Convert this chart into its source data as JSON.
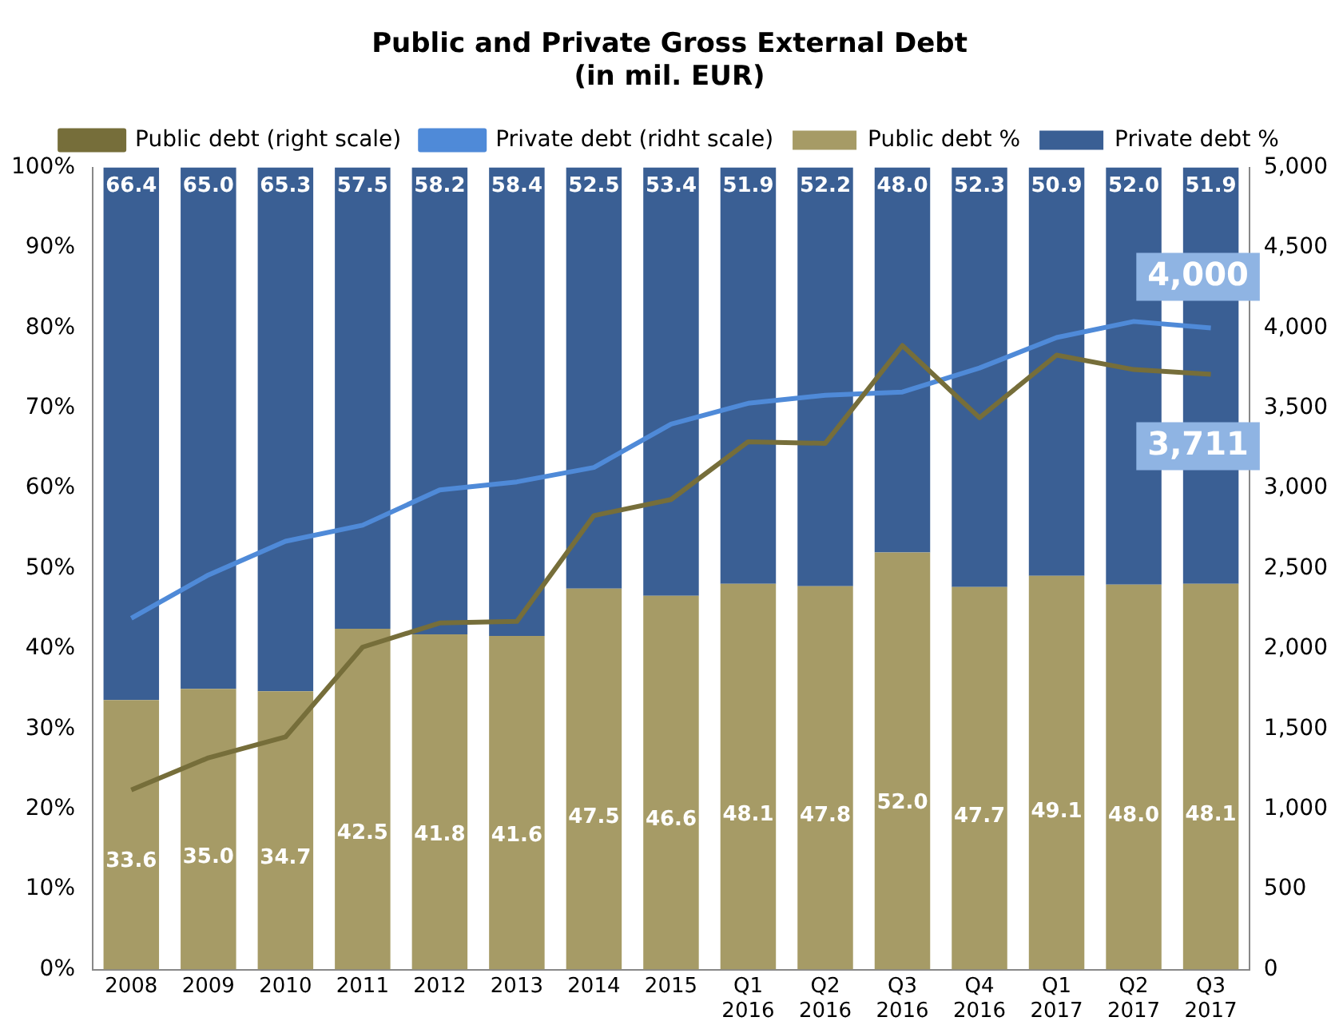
{
  "chart_data": {
    "type": "bar",
    "title": "Public and Private Gross External Debt",
    "subtitle": "(in mil. EUR)",
    "categories": [
      "2008",
      "2009",
      "2010",
      "2011",
      "2012",
      "2013",
      "2014",
      "2015",
      "Q1 2016",
      "Q2 2016",
      "Q3 2016",
      "Q4 2016",
      "Q1 2017",
      "Q2 2017",
      "Q3 2017"
    ],
    "stacked": true,
    "legend": "top",
    "grid": false,
    "ylim": [
      0,
      100
    ],
    "yticks": [
      {
        "value": 0,
        "label": "0%"
      },
      {
        "value": 10,
        "label": "10%"
      },
      {
        "value": 20,
        "label": "20%"
      },
      {
        "value": 30,
        "label": "30%"
      },
      {
        "value": 40,
        "label": "40%"
      },
      {
        "value": 50,
        "label": "50%"
      },
      {
        "value": 60,
        "label": "60%"
      },
      {
        "value": 70,
        "label": "70%"
      },
      {
        "value": 80,
        "label": "80%"
      },
      {
        "value": 90,
        "label": "90%"
      },
      {
        "value": 100,
        "label": "100%"
      }
    ],
    "y2lim": [
      0,
      5000
    ],
    "y2ticks": [
      0,
      500,
      {
        "value": 1000,
        "label": "1,000"
      },
      {
        "value": 1500,
        "label": "1,500"
      },
      {
        "value": 2000,
        "label": "2,000"
      },
      {
        "value": 2500,
        "label": "2,500"
      },
      {
        "value": 3000,
        "label": "3,000"
      },
      {
        "value": 3500,
        "label": "3,500"
      },
      {
        "value": 4000,
        "label": "4,000"
      },
      {
        "value": 4500,
        "label": "4,500"
      },
      {
        "value": 5000,
        "label": "5,000"
      }
    ],
    "series": [
      {
        "name": "Public debt %",
        "color": "#a69b66",
        "values": [
          33.6,
          35.0,
          34.7,
          42.5,
          41.8,
          41.6,
          47.5,
          46.6,
          48.1,
          47.8,
          52.0,
          47.7,
          49.1,
          48.0,
          48.1
        ],
        "value_labels": [
          "33.6",
          "35.0",
          "34.7",
          "42.5",
          "41.8",
          "41.6",
          "47.5",
          "46.6",
          "48.1",
          "47.8",
          "52.0",
          "47.7",
          "49.1",
          "48.0",
          "48.1"
        ]
      },
      {
        "name": "Private debt %",
        "color": "#3a5f94",
        "values": [
          66.4,
          65.0,
          65.3,
          57.5,
          58.2,
          58.4,
          52.5,
          53.4,
          51.9,
          52.2,
          48.0,
          52.3,
          50.9,
          52.0,
          51.9
        ],
        "value_labels": [
          "66.4",
          "65.0",
          "65.3",
          "57.5",
          "58.2",
          "58.4",
          "52.5",
          "53.4",
          "51.9",
          "52.2",
          "48.0",
          "52.3",
          "50.9",
          "52.0",
          "51.9"
        ]
      },
      {
        "name": "Public debt (right scale)",
        "type": "line",
        "axis": "y2",
        "color": "#766e3a",
        "values": [
          1120,
          1320,
          1450,
          2010,
          2160,
          2170,
          2830,
          2930,
          3290,
          3280,
          3890,
          3440,
          3830,
          3740,
          3711
        ],
        "value_labels": [
          null,
          null,
          null,
          null,
          null,
          null,
          null,
          null,
          null,
          null,
          null,
          null,
          null,
          null,
          "3,711"
        ]
      },
      {
        "name": "Private debt (ridht scale)",
        "type": "line",
        "axis": "y2",
        "color": "#4f8ad8",
        "values": [
          2190,
          2460,
          2670,
          2770,
          2990,
          3040,
          3130,
          3400,
          3530,
          3580,
          3600,
          3750,
          3940,
          4040,
          4000
        ],
        "value_labels": [
          null,
          null,
          null,
          null,
          null,
          null,
          null,
          null,
          null,
          null,
          null,
          null,
          null,
          null,
          "4,000"
        ]
      }
    ]
  }
}
